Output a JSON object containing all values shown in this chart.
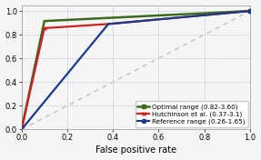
{
  "title": "",
  "xlabel": "False positive rate",
  "ylabel": "",
  "xlim": [
    0.0,
    1.0
  ],
  "ylim": [
    0.0,
    1.05
  ],
  "xticks": [
    0.0,
    0.2,
    0.4,
    0.6,
    0.8,
    1.0
  ],
  "yticks": [
    0.0,
    0.2,
    0.4,
    0.6,
    0.8,
    1.0
  ],
  "curves": [
    {
      "label": "Optimal range (0.82-3.60)",
      "color": "#3d6b1e",
      "linewidth": 1.8,
      "marker": "s",
      "markersize": 3.5,
      "marker_index": 2,
      "x": [
        0.0,
        0.1,
        1.0
      ],
      "y": [
        0.0,
        0.915,
        1.0
      ]
    },
    {
      "label": "Hutchinson et al. (0.37-3.1)",
      "color": "#cc2222",
      "linewidth": 1.6,
      "marker": "x",
      "markersize": 3.5,
      "marker_index": 1,
      "x": [
        0.0,
        0.1,
        0.38,
        1.0
      ],
      "y": [
        0.0,
        0.855,
        0.89,
        1.0
      ]
    },
    {
      "label": "Reference range (0.26-1.65)",
      "color": "#1a3a8a",
      "linewidth": 1.6,
      "marker": "o",
      "markersize": 3.0,
      "marker_index": 2,
      "x": [
        0.0,
        0.38,
        1.0
      ],
      "y": [
        0.0,
        0.89,
        1.0
      ]
    }
  ],
  "legend_loc": "lower right",
  "legend_fontsize": 5.2,
  "tick_fontsize": 6.0,
  "xlabel_fontsize": 7.0,
  "background_color": "#f5f5f5",
  "grid_color": "#c8d4e4",
  "grid_linewidth": 0.5,
  "diag_color": "#bbbbbb",
  "diag_linewidth": 0.9,
  "spine_color": "#999999",
  "spine_linewidth": 0.5
}
